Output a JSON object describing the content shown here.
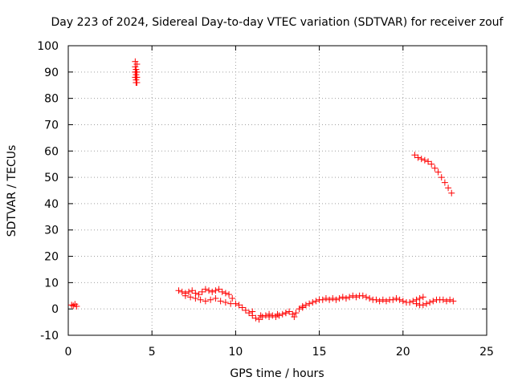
{
  "chart_data": {
    "type": "scatter",
    "title": "Day 223 of 2024, Sidereal Day-to-day VTEC variation (SDTVAR) for receiver zouf",
    "xlabel": "GPS time / hours",
    "ylabel": "SDTVAR / TECUs",
    "xlim": [
      0,
      25
    ],
    "ylim": [
      -10,
      100
    ],
    "xticks": [
      0,
      5,
      10,
      15,
      20,
      25
    ],
    "xtick_labels": [
      "0",
      "5",
      "10",
      "15",
      "20",
      "25"
    ],
    "yticks": [
      -10,
      0,
      10,
      20,
      30,
      40,
      50,
      60,
      70,
      80,
      90,
      100
    ],
    "ytick_labels": [
      "-10",
      "0",
      "10",
      "20",
      "30",
      "40",
      "50",
      "60",
      "70",
      "80",
      "90",
      "100"
    ],
    "grid": true,
    "marker": "+",
    "series": [
      {
        "name": "SDTVAR",
        "color": "#ff0000",
        "x": [
          0.2,
          0.3,
          0.4,
          0.5,
          4.0,
          4.0,
          4.0,
          4.0,
          4.05,
          4.05,
          4.05,
          4.05,
          4.1,
          4.1,
          4.1,
          4.1,
          6.6,
          6.8,
          7.0,
          7.2,
          7.4,
          7.6,
          7.8,
          8.0,
          8.2,
          8.4,
          8.6,
          8.8,
          9.0,
          9.2,
          9.4,
          9.6,
          9.8,
          7.0,
          7.3,
          7.6,
          7.9,
          8.2,
          8.5,
          8.8,
          9.1,
          9.4,
          9.7,
          10.0,
          10.2,
          10.4,
          10.6,
          10.8,
          11.0,
          11.2,
          11.4,
          11.6,
          11.8,
          12.0,
          12.2,
          12.4,
          12.6,
          12.8,
          13.0,
          13.2,
          13.4,
          13.6,
          13.8,
          14.0,
          14.2,
          14.4,
          14.6,
          14.8,
          15.0,
          11.0,
          11.5,
          12.0,
          12.5,
          13.0,
          13.5,
          14.0,
          15.2,
          15.4,
          15.6,
          15.8,
          16.0,
          16.2,
          16.4,
          16.6,
          16.8,
          17.0,
          17.2,
          17.4,
          17.6,
          17.8,
          18.0,
          18.2,
          18.4,
          18.6,
          18.8,
          19.0,
          19.2,
          19.4,
          19.6,
          19.8,
          20.0,
          20.2,
          20.4,
          20.6,
          20.8,
          21.0,
          21.2,
          20.8,
          21.0,
          21.2,
          21.4,
          21.6,
          21.8,
          22.0,
          22.2,
          22.4,
          22.6,
          22.8,
          23.0,
          20.7,
          20.9,
          21.1,
          21.3,
          21.5,
          21.7,
          21.9,
          22.1,
          22.3,
          22.5,
          22.7,
          22.9
        ],
        "y": [
          1.5,
          1.2,
          1.8,
          1.0,
          94,
          92,
          90,
          88,
          91,
          89,
          87,
          86,
          93,
          90,
          88,
          86,
          7.0,
          6.5,
          6.0,
          6.5,
          7.0,
          6.0,
          5.5,
          6.5,
          7.5,
          7.0,
          6.5,
          7.0,
          7.5,
          6.5,
          6.0,
          5.5,
          4.0,
          5.0,
          4.5,
          4.0,
          3.5,
          3.0,
          3.5,
          4.0,
          3.0,
          2.5,
          2.0,
          2.0,
          1.5,
          0.5,
          -0.5,
          -1.5,
          -2.5,
          -3.5,
          -4.0,
          -3.0,
          -2.5,
          -2.0,
          -2.5,
          -3.0,
          -2.5,
          -2.0,
          -1.5,
          -1.0,
          -2.0,
          -1.5,
          0.0,
          1.0,
          1.5,
          2.0,
          2.5,
          3.0,
          3.5,
          -1.0,
          -2.5,
          -3.0,
          -2.0,
          -1.5,
          -3.0,
          0.5,
          3.5,
          4.0,
          3.5,
          4.0,
          3.5,
          4.0,
          4.5,
          4.0,
          4.5,
          5.0,
          4.5,
          5.0,
          5.0,
          4.5,
          4.0,
          3.5,
          3.5,
          3.0,
          3.5,
          3.0,
          3.5,
          3.5,
          4.0,
          3.5,
          3.0,
          2.5,
          2.5,
          3.0,
          3.5,
          4.0,
          4.5,
          2.0,
          1.5,
          1.5,
          2.0,
          2.5,
          3.0,
          3.5,
          3.5,
          3.5,
          3.0,
          3.5,
          3.0,
          58.5,
          57.5,
          57.0,
          56.5,
          56.0,
          55.0,
          53.5,
          52.0,
          50.0,
          48.0,
          46.0,
          44.0
        ]
      }
    ]
  }
}
